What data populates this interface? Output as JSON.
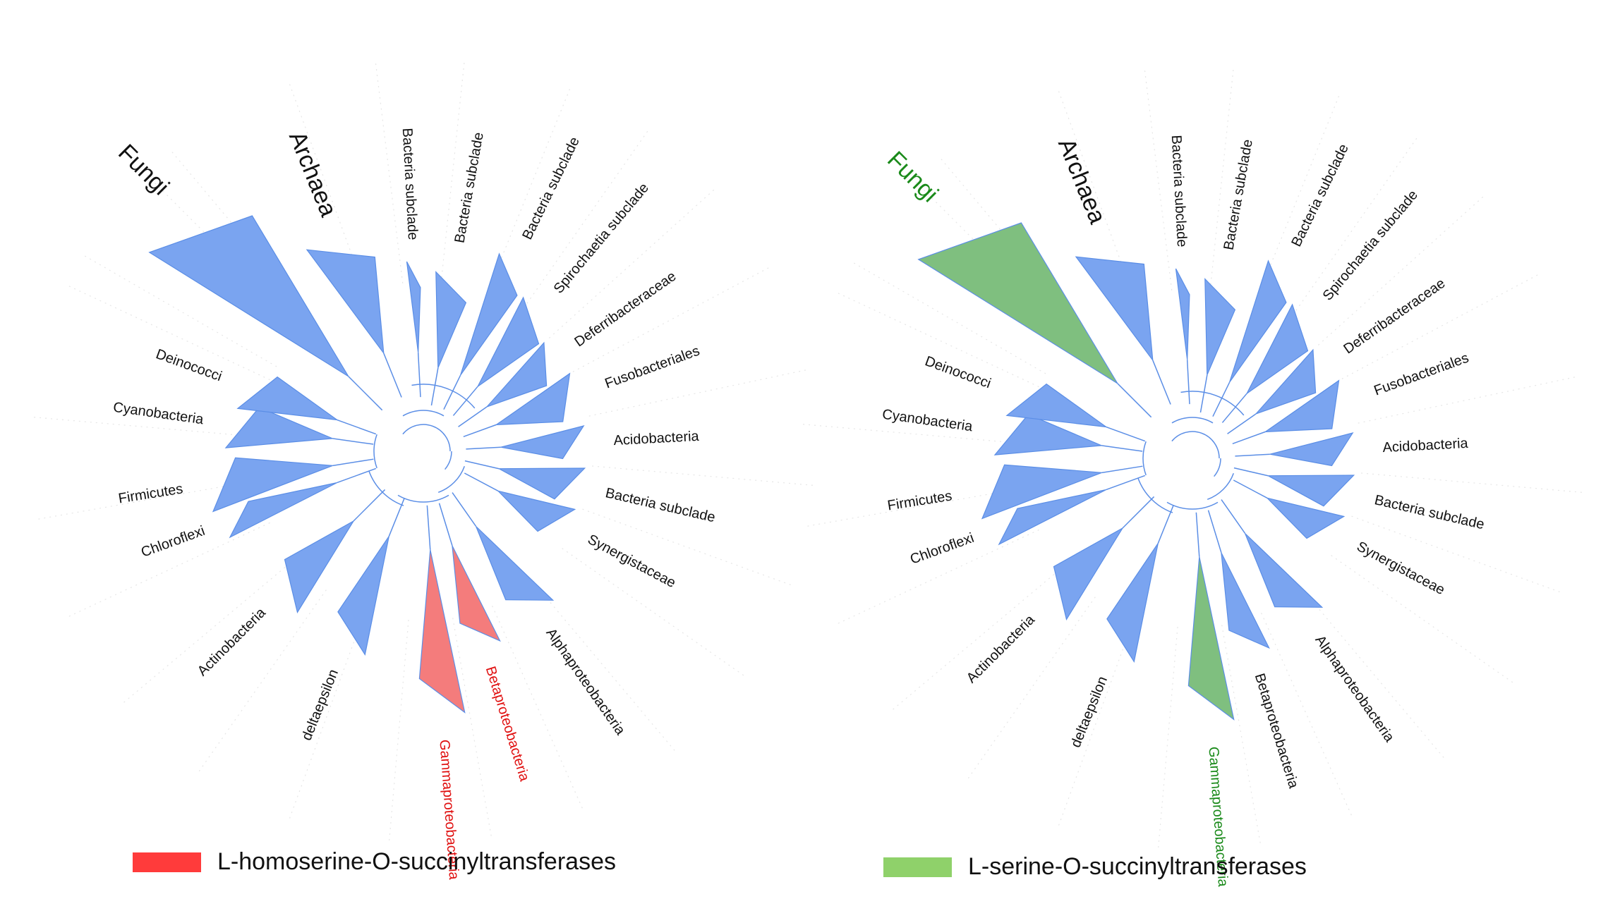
{
  "colors": {
    "default_clade": "#7aa4f0",
    "branch": "#5b8ee6",
    "gridline": "#e6e6e6",
    "label_default": "#111111"
  },
  "panels": [
    {
      "id": "left",
      "highlight": {
        "fill": "#f47c7c",
        "text": "#e01010"
      },
      "legend": {
        "label": "L-homoserine-O-succinyltransferases",
        "swatch": "#ff3b3b"
      },
      "clades": [
        {
          "name": "Fungi",
          "highlight": false
        },
        {
          "name": "Archaea",
          "highlight": false
        },
        {
          "name": "Bacteria subclade",
          "highlight": false
        },
        {
          "name": "Bacteria subclade",
          "highlight": false
        },
        {
          "name": "Bacteria subclade",
          "highlight": false
        },
        {
          "name": "Spirochaetia subclade",
          "highlight": false
        },
        {
          "name": "Deferribacteraceae",
          "highlight": false
        },
        {
          "name": "Fusobacteriales",
          "highlight": false
        },
        {
          "name": "Acidobacteria",
          "highlight": false
        },
        {
          "name": "Bacteria subclade",
          "highlight": false
        },
        {
          "name": "Synergistaceae",
          "highlight": false
        },
        {
          "name": "Alphaproteobacteria",
          "highlight": false
        },
        {
          "name": "Betaproteobacteria",
          "highlight": true
        },
        {
          "name": "Gammaproteobacteria",
          "highlight": true
        },
        {
          "name": "deltaepsilon",
          "highlight": false
        },
        {
          "name": "Actinobacteria",
          "highlight": false
        },
        {
          "name": "Chloroflexi",
          "highlight": false
        },
        {
          "name": "Firmicutes",
          "highlight": false
        },
        {
          "name": "Cyanobacteria",
          "highlight": false
        },
        {
          "name": "Deinococci",
          "highlight": false
        }
      ]
    },
    {
      "id": "right",
      "highlight": {
        "fill": "#7fbf7f",
        "text": "#1a8a1a"
      },
      "legend": {
        "label": "L-serine-O-succinyltransferases",
        "swatch": "#8fd16a"
      },
      "clades": [
        {
          "name": "Fungi",
          "highlight": true
        },
        {
          "name": "Archaea",
          "highlight": false
        },
        {
          "name": "Bacteria subclade",
          "highlight": false
        },
        {
          "name": "Bacteria subclade",
          "highlight": false
        },
        {
          "name": "Bacteria subclade",
          "highlight": false
        },
        {
          "name": "Spirochaetia subclade",
          "highlight": false
        },
        {
          "name": "Deferribacteraceae",
          "highlight": false
        },
        {
          "name": "Fusobacteriales",
          "highlight": false
        },
        {
          "name": "Acidobacteria",
          "highlight": false
        },
        {
          "name": "Bacteria subclade",
          "highlight": false
        },
        {
          "name": "Synergistaceae",
          "highlight": false
        },
        {
          "name": "Alphaproteobacteria",
          "highlight": false
        },
        {
          "name": "Betaproteobacteria",
          "highlight": false
        },
        {
          "name": "Gammaproteobacteria",
          "highlight": true
        },
        {
          "name": "deltaepsilon",
          "highlight": false
        },
        {
          "name": "Actinobacteria",
          "highlight": false
        },
        {
          "name": "Chloroflexi",
          "highlight": false
        },
        {
          "name": "Firmicutes",
          "highlight": false
        },
        {
          "name": "Cyanobacteria",
          "highlight": false
        },
        {
          "name": "Deinococci",
          "highlight": false
        }
      ]
    }
  ]
}
